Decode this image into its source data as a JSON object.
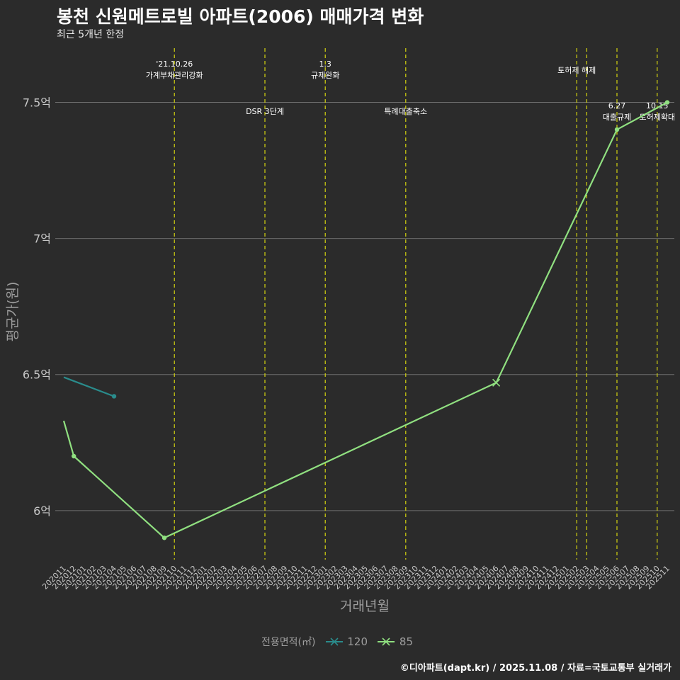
{
  "title": "봉천 신원메트로빌 아파트(2006) 매매가격 변화",
  "subtitle": "최근 5개년 한정",
  "caption": "©디아파트(dapt.kr) / 2025.11.08 / 자료=국토교통부 실거래가",
  "legend": {
    "title": "전용면적(㎡)",
    "items": [
      "120",
      "85"
    ]
  },
  "colors": {
    "background": "#2b2b2b",
    "grid": "#6e6e6e",
    "vline": "#d4d40f",
    "s120": "#2a8c8c",
    "s85": "#90e080",
    "axisText": "#c8c8c8",
    "axisTitle": "#9e9e9e"
  },
  "chart_data": {
    "type": "line",
    "title": "봉천 신원메트로빌 아파트(2006) 매매가격 변화",
    "xlabel": "거래년월",
    "ylabel": "평균가(원)",
    "ylim": [
      5.82,
      7.72
    ],
    "yticks": [
      {
        "v": 6,
        "label": "6억"
      },
      {
        "v": 6.5,
        "label": "6.5억"
      },
      {
        "v": 7,
        "label": "7억"
      },
      {
        "v": 7.5,
        "label": "7.5억"
      }
    ],
    "x": [
      "202011",
      "202012",
      "202101",
      "202102",
      "202103",
      "202104",
      "202105",
      "202106",
      "202107",
      "202108",
      "202109",
      "202110",
      "202111",
      "202112",
      "202201",
      "202202",
      "202203",
      "202204",
      "202205",
      "202206",
      "202207",
      "202208",
      "202209",
      "202210",
      "202211",
      "202212",
      "202301",
      "202302",
      "202303",
      "202304",
      "202305",
      "202306",
      "202307",
      "202308",
      "202309",
      "202310",
      "202311",
      "202312",
      "202401",
      "202402",
      "202403",
      "202404",
      "202405",
      "202406",
      "202407",
      "202408",
      "202409",
      "202410",
      "202411",
      "202412",
      "202501",
      "202502",
      "202503",
      "202504",
      "202505",
      "202506",
      "202507",
      "202508",
      "202509",
      "202510",
      "202511"
    ],
    "series": [
      {
        "name": "120",
        "points": [
          {
            "x": "202011",
            "y": 6.49
          },
          {
            "x": "202104",
            "y": 6.42
          }
        ],
        "markers": [
          "202104"
        ]
      },
      {
        "name": "85",
        "points": [
          {
            "x": "202011",
            "y": 6.33
          },
          {
            "x": "202012",
            "y": 6.2
          },
          {
            "x": "202109",
            "y": 5.9
          },
          {
            "x": "202406",
            "y": 6.47
          },
          {
            "x": "202506",
            "y": 7.4
          },
          {
            "x": "202511",
            "y": 7.5
          }
        ],
        "markers": [
          "202012",
          "202109",
          "202506",
          "202511"
        ],
        "cross": [
          "202406"
        ]
      }
    ],
    "annotations": [
      {
        "x": "202110",
        "lines": [
          "'21.10.26",
          "가계부채관리강화"
        ],
        "pos": "top"
      },
      {
        "x": "202207",
        "lines": [
          "DSR 3단계"
        ],
        "pos": "mid"
      },
      {
        "x": "202301",
        "lines": [
          "1.3",
          "규제완화"
        ],
        "pos": "top"
      },
      {
        "x": "202309",
        "lines": [
          "특례대출축소"
        ],
        "pos": "mid"
      },
      {
        "x": "202502",
        "lines": [
          "토허제 해제"
        ],
        "pos": "high"
      },
      {
        "x": "202503",
        "lines": [],
        "pos": "none"
      },
      {
        "x": "202506",
        "lines": [
          "6.27",
          "대출규제"
        ],
        "pos": "low"
      },
      {
        "x": "202510",
        "lines": [
          "10.15",
          "토허제확대"
        ],
        "pos": "low"
      }
    ]
  }
}
